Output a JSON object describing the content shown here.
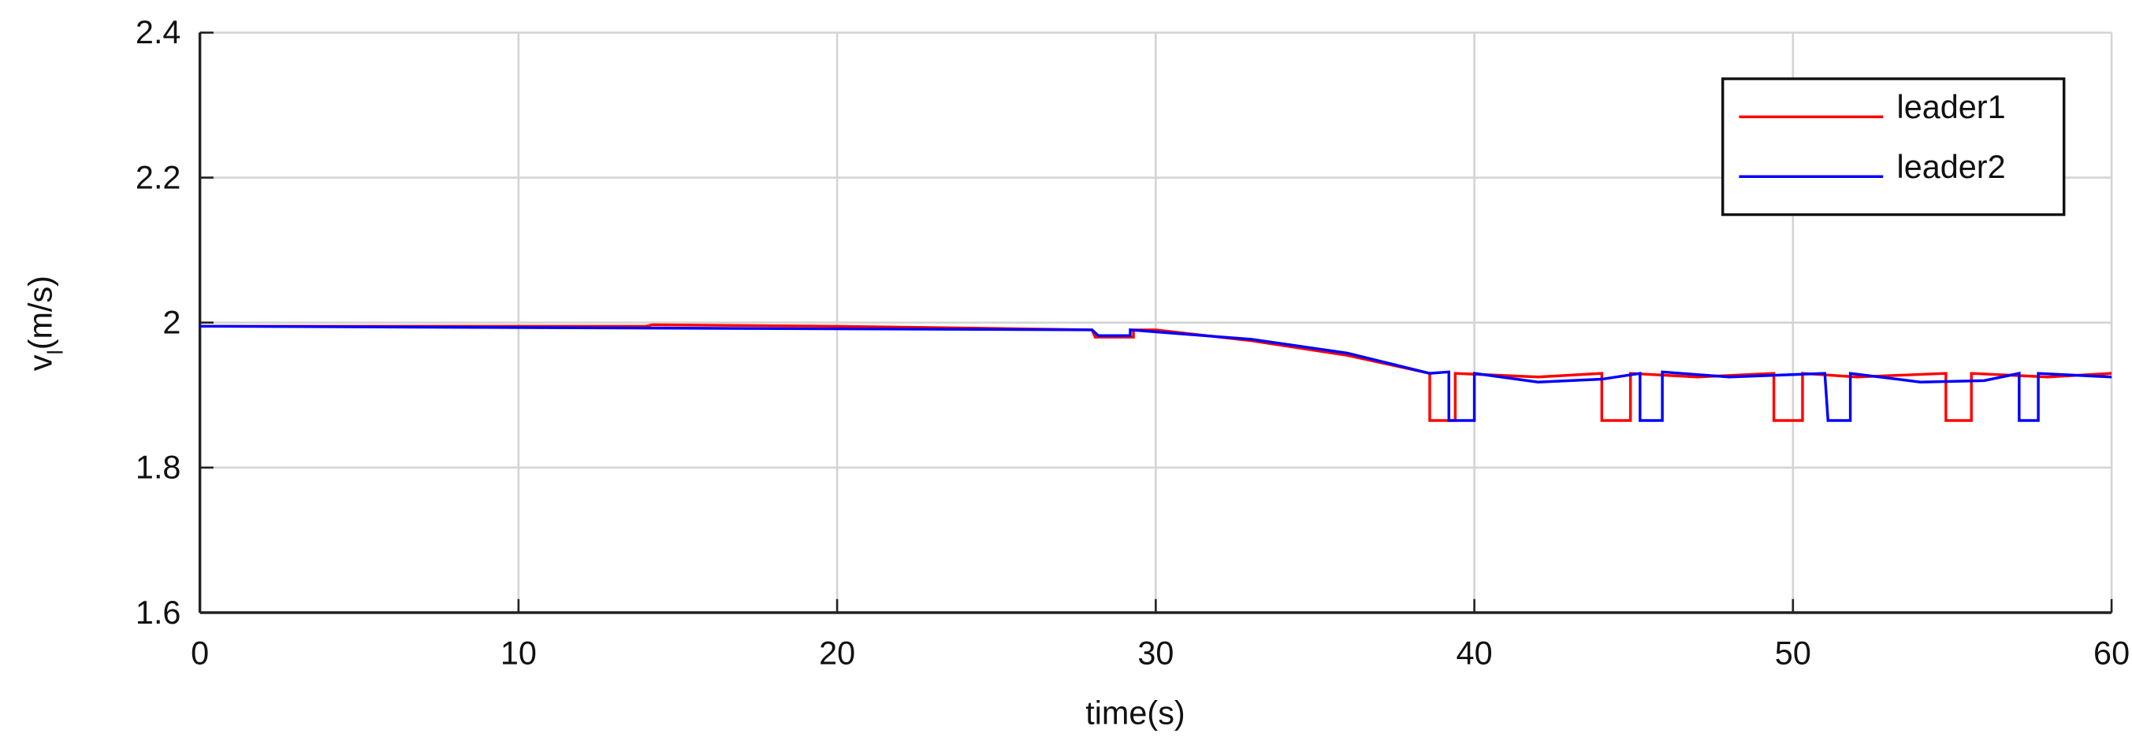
{
  "chart_data": {
    "type": "line",
    "xlabel": "time(s)",
    "ylabel": "v",
    "ylabel_sub": "l",
    "ylabel_unit": "(m/s)",
    "xlim": [
      0,
      60
    ],
    "ylim": [
      1.6,
      2.4
    ],
    "xticks": [
      0,
      10,
      20,
      30,
      40,
      50,
      60
    ],
    "yticks": [
      1.6,
      1.8,
      2,
      2.2,
      2.4
    ],
    "grid": true,
    "legend": "northeast",
    "series": [
      {
        "name": "leader1",
        "color": "#ff0000",
        "x": [
          0,
          14,
          14.2,
          20,
          28,
          28.1,
          29.3,
          29.3,
          30,
          33,
          36,
          38.6,
          38.6,
          39.4,
          39.4,
          42,
          44,
          44,
          44.9,
          44.9,
          47,
          49.4,
          49.4,
          50.3,
          50.3,
          52,
          54.8,
          54.8,
          55.6,
          55.6,
          58,
          60
        ],
        "values": [
          1.995,
          1.995,
          1.997,
          1.995,
          1.99,
          1.98,
          1.98,
          1.99,
          1.99,
          1.975,
          1.955,
          1.93,
          1.865,
          1.865,
          1.93,
          1.925,
          1.93,
          1.865,
          1.865,
          1.93,
          1.925,
          1.93,
          1.865,
          1.865,
          1.93,
          1.925,
          1.93,
          1.865,
          1.865,
          1.93,
          1.925,
          1.93
        ]
      },
      {
        "name": "leader2",
        "color": "#0000ff",
        "x": [
          0,
          28,
          28.2,
          29.2,
          29.2,
          33,
          36,
          38.6,
          39.2,
          39.2,
          40,
          40,
          42,
          44,
          45.2,
          45.2,
          45.9,
          45.9,
          48,
          51,
          51.1,
          51.8,
          51.8,
          54,
          56,
          57.1,
          57.1,
          57.7,
          57.7,
          60
        ],
        "values": [
          1.995,
          1.99,
          1.982,
          1.982,
          1.99,
          1.977,
          1.958,
          1.93,
          1.932,
          1.865,
          1.865,
          1.93,
          1.918,
          1.922,
          1.93,
          1.865,
          1.865,
          1.932,
          1.925,
          1.93,
          1.865,
          1.865,
          1.93,
          1.918,
          1.92,
          1.93,
          1.865,
          1.865,
          1.93,
          1.925
        ]
      }
    ]
  }
}
